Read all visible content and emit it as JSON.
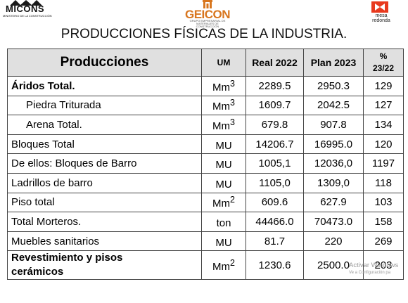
{
  "logos": {
    "left": {
      "name": "MICONS",
      "subtitle": "MINISTERIO DE LA CONSTRUCCIÓN"
    },
    "center": {
      "name": "GEICON",
      "subtitle": "GRUPO EMPRESARIAL DE MATERIALES DE CONSTRUCCIÓN"
    },
    "right": {
      "name_line1": "mesa",
      "name_line2": "redonda"
    }
  },
  "title": "PRODUCCIONES FÍSICAS DE LA INDUSTRIA.",
  "table": {
    "headers": {
      "producciones": "Producciones",
      "um": "UM",
      "real": "Real 2022",
      "plan": "Plan 2023",
      "pct_line1": "%",
      "pct_line2": "23/22"
    },
    "rows": [
      {
        "label": "Áridos Total.",
        "um_base": "Mm",
        "um_sup": "3",
        "real": "2289.5",
        "plan": "2950.3",
        "pct": "129"
      },
      {
        "label": "Piedra Triturada",
        "um_base": "Mm",
        "um_sup": "3",
        "real": "1609.7",
        "plan": "2042.5",
        "pct": "127"
      },
      {
        "label": "Arena Total.",
        "um_base": "Mm",
        "um_sup": "3",
        "real": "679.8",
        "plan": "907.8",
        "pct": "134"
      },
      {
        "label": "Bloques Total",
        "um_base": "MU",
        "um_sup": "",
        "real": "14206.7",
        "plan": "16995.0",
        "pct": "120"
      },
      {
        "label": "De ellos: Bloques de Barro",
        "um_base": "MU",
        "um_sup": "",
        "real": "1005,1",
        "plan": "12036,0",
        "pct": "1197"
      },
      {
        "label": "Ladrillos de barro",
        "um_base": "MU",
        "um_sup": "",
        "real": "1105,0",
        "plan": "1309,0",
        "pct": "118"
      },
      {
        "label": "Piso total",
        "um_base": "Mm",
        "um_sup": "2",
        "real": "609.6",
        "plan": "627.9",
        "pct": "103"
      },
      {
        "label": "Total Morteros.",
        "um_base": "ton",
        "um_sup": "",
        "real": "44466.0",
        "plan": "70473.0",
        "pct": "158"
      },
      {
        "label": "Muebles sanitarios",
        "um_base": "MU",
        "um_sup": "",
        "real": "81.7",
        "plan": "220",
        "pct": "269"
      },
      {
        "label_line1": "Revestimiento y pisos",
        "label_line2": "cerámicos",
        "um_base": "Mm",
        "um_sup": "2",
        "real": "1230.6",
        "plan": "2500.0",
        "pct": "203"
      }
    ]
  },
  "watermark": {
    "line1": "Activar Windows",
    "line2": "Ve a Configuración pa"
  }
}
